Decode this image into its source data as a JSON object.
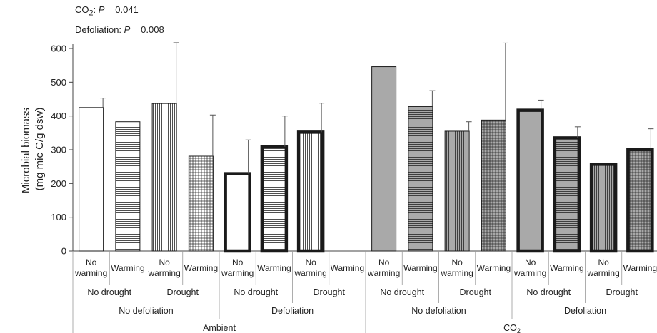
{
  "annotations": {
    "co2_label": "CO",
    "co2_sub": "2",
    "co2_p_letter": "P",
    "co2_p_value": " = 0.041",
    "defol_label": "Defoliation: ",
    "defol_p_letter": "P",
    "defol_p_value": " = 0.008"
  },
  "chart_data": {
    "type": "bar",
    "ylabel_line1": "Microbial biomass",
    "ylabel_line2": "(mg mic C/g dsw)",
    "ylim": [
      0,
      600
    ],
    "yticks": [
      0,
      100,
      200,
      300,
      400,
      500,
      600
    ],
    "grid": false,
    "bars": [
      {
        "label": "No\nwarming",
        "value": 425,
        "error": 28,
        "fill": "white",
        "pattern": "none",
        "thick": false
      },
      {
        "label": "Warming",
        "value": 383,
        "error": null,
        "fill": "white",
        "pattern": "hlines",
        "thick": false
      },
      {
        "label": "No\nwarming",
        "value": 437,
        "error": 180,
        "fill": "white",
        "pattern": "vlines",
        "thick": false
      },
      {
        "label": "Warming",
        "value": 281,
        "error": 122,
        "fill": "white",
        "pattern": "grid",
        "thick": false
      },
      {
        "label": "No\nwarming",
        "value": 229,
        "error": 100,
        "fill": "white",
        "pattern": "none",
        "thick": true
      },
      {
        "label": "Warming",
        "value": 309,
        "error": 91,
        "fill": "white",
        "pattern": "hlines",
        "thick": true
      },
      {
        "label": "No\nwarming",
        "value": 352,
        "error": 86,
        "fill": "white",
        "pattern": "vlines",
        "thick": true
      },
      {
        "label": "Warming",
        "value": null,
        "error": null,
        "fill": "white",
        "pattern": "grid",
        "thick": true
      },
      {
        "label": "No\nwarming",
        "value": 546,
        "error": null,
        "fill": "gray",
        "pattern": "none",
        "thick": false
      },
      {
        "label": "Warming",
        "value": 428,
        "error": 47,
        "fill": "gray",
        "pattern": "hlines",
        "thick": false
      },
      {
        "label": "No\nwarming",
        "value": 355,
        "error": 28,
        "fill": "gray",
        "pattern": "vlines",
        "thick": false
      },
      {
        "label": "Warming",
        "value": 388,
        "error": 228,
        "fill": "gray",
        "pattern": "grid",
        "thick": false
      },
      {
        "label": "No\nwarming",
        "value": 417,
        "error": 30,
        "fill": "gray",
        "pattern": "none",
        "thick": true
      },
      {
        "label": "Warming",
        "value": 335,
        "error": 33,
        "fill": "gray",
        "pattern": "hlines",
        "thick": true
      },
      {
        "label": "No\nwarming",
        "value": 257,
        "error": null,
        "fill": "gray",
        "pattern": "vlines",
        "thick": true
      },
      {
        "label": "Warming",
        "value": 300,
        "error": 62,
        "fill": "gray",
        "pattern": "grid",
        "thick": true
      }
    ],
    "drought_groups": [
      "No drought",
      "Drought",
      "No drought",
      "Drought",
      "No drought",
      "Drought",
      "No drought",
      "Drought"
    ],
    "defoliation_groups": [
      "No defoliation",
      "Defoliation",
      "No defoliation",
      "Defoliation"
    ],
    "co2_groups": [
      {
        "label": "Ambient",
        "sub": ""
      },
      {
        "label": "CO",
        "sub": "2"
      }
    ],
    "colors": {
      "gray_fill": "#a9a9a9",
      "stroke": "#1a1a1a",
      "axis": "#444444"
    }
  }
}
